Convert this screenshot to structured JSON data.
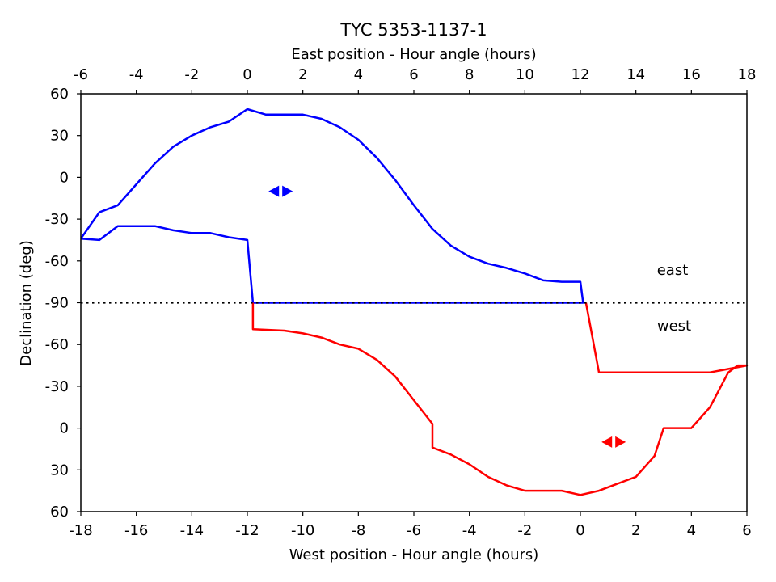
{
  "chart_data": {
    "type": "line",
    "title": "TYC 5353-1137-1",
    "top_xlabel": "East position - Hour angle (hours)",
    "bottom_xlabel": "West position - Hour angle (hours)",
    "ylabel": "Declination (deg)",
    "top_ticks": [
      "-6",
      "-4",
      "-2",
      "0",
      "2",
      "4",
      "6",
      "8",
      "10",
      "12",
      "14",
      "16",
      "18"
    ],
    "bottom_ticks": [
      "-18",
      "-16",
      "-14",
      "-12",
      "-10",
      "-8",
      "-6",
      "-4",
      "-2",
      "0",
      "2",
      "4",
      "6"
    ],
    "y_ticks": [
      "60",
      "30",
      "0",
      "-30",
      "-60",
      "-90",
      "-60",
      "-30",
      "0",
      "30",
      "60"
    ],
    "grid": false,
    "legend_position": "right, above and below the meridian line",
    "series": [
      {
        "name": "east",
        "color": "#0000ff",
        "axis": "top",
        "outline": [
          {
            "ha": -6.0,
            "dec": -44
          },
          {
            "ha": -5.33,
            "dec": -25
          },
          {
            "ha": -4.67,
            "dec": -20
          },
          {
            "ha": -4.0,
            "dec": -5
          },
          {
            "ha": -3.33,
            "dec": 10
          },
          {
            "ha": -2.67,
            "dec": 22
          },
          {
            "ha": -2.0,
            "dec": 30
          },
          {
            "ha": -1.33,
            "dec": 36
          },
          {
            "ha": -0.67,
            "dec": 40
          },
          {
            "ha": 0.0,
            "dec": 49
          },
          {
            "ha": 0.67,
            "dec": 45
          },
          {
            "ha": 2.0,
            "dec": 45
          },
          {
            "ha": 2.67,
            "dec": 42
          },
          {
            "ha": 3.33,
            "dec": 36
          },
          {
            "ha": 4.0,
            "dec": 27
          },
          {
            "ha": 4.67,
            "dec": 14
          },
          {
            "ha": 5.33,
            "dec": -2
          },
          {
            "ha": 6.0,
            "dec": -20
          },
          {
            "ha": 6.67,
            "dec": -37
          },
          {
            "ha": 7.33,
            "dec": -49
          },
          {
            "ha": 8.0,
            "dec": -57
          },
          {
            "ha": 8.67,
            "dec": -62
          },
          {
            "ha": 9.33,
            "dec": -65
          },
          {
            "ha": 10.0,
            "dec": -69
          },
          {
            "ha": 10.67,
            "dec": -74
          },
          {
            "ha": 11.33,
            "dec": -75
          },
          {
            "ha": 12.0,
            "dec": -75
          },
          {
            "ha": 12.1,
            "dec": -90
          },
          {
            "ha": 0.2,
            "dec": -90
          },
          {
            "ha": 0.0,
            "dec": -45
          },
          {
            "ha": -0.67,
            "dec": -43
          },
          {
            "ha": -1.33,
            "dec": -40
          },
          {
            "ha": -2.0,
            "dec": -40
          },
          {
            "ha": -2.67,
            "dec": -38
          },
          {
            "ha": -3.33,
            "dec": -35
          },
          {
            "ha": -4.0,
            "dec": -35
          },
          {
            "ha": -4.67,
            "dec": -35
          },
          {
            "ha": -5.33,
            "dec": -45
          },
          {
            "ha": -6.0,
            "dec": -44
          }
        ]
      },
      {
        "name": "west",
        "color": "#ff0000",
        "axis": "bottom",
        "outline": [
          {
            "ha": -11.8,
            "dec": -90
          },
          {
            "ha": -11.8,
            "dec": -71
          },
          {
            "ha": -10.67,
            "dec": -70
          },
          {
            "ha": -10.0,
            "dec": -68
          },
          {
            "ha": -9.33,
            "dec": -65
          },
          {
            "ha": -8.67,
            "dec": -60
          },
          {
            "ha": -8.0,
            "dec": -57
          },
          {
            "ha": -7.33,
            "dec": -49
          },
          {
            "ha": -6.67,
            "dec": -37
          },
          {
            "ha": -6.0,
            "dec": -20
          },
          {
            "ha": -5.33,
            "dec": -3
          },
          {
            "ha": -5.33,
            "dec": 14
          },
          {
            "ha": -4.67,
            "dec": 19
          },
          {
            "ha": -4.0,
            "dec": 26
          },
          {
            "ha": -3.33,
            "dec": 35
          },
          {
            "ha": -2.67,
            "dec": 41
          },
          {
            "ha": -2.0,
            "dec": 45
          },
          {
            "ha": -1.33,
            "dec": 45
          },
          {
            "ha": -0.67,
            "dec": 45
          },
          {
            "ha": 0.0,
            "dec": 48
          },
          {
            "ha": 0.67,
            "dec": 45
          },
          {
            "ha": 1.33,
            "dec": 40
          },
          {
            "ha": 2.0,
            "dec": 35
          },
          {
            "ha": 2.67,
            "dec": 20
          },
          {
            "ha": 3.0,
            "dec": 0
          },
          {
            "ha": 4.0,
            "dec": 0
          },
          {
            "ha": 4.67,
            "dec": -15
          },
          {
            "ha": 5.33,
            "dec": -40
          },
          {
            "ha": 5.67,
            "dec": -45
          },
          {
            "ha": 6.0,
            "dec": -45
          },
          {
            "ha": 4.67,
            "dec": -40
          },
          {
            "ha": 3.33,
            "dec": -40
          },
          {
            "ha": 2.0,
            "dec": -40
          },
          {
            "ha": 1.33,
            "dec": -40
          },
          {
            "ha": 0.67,
            "dec": -40
          },
          {
            "ha": 0.2,
            "dec": -90
          }
        ]
      }
    ],
    "markers": [
      {
        "name": "east-direction-marker",
        "color": "#0000ff",
        "axis": "top",
        "ha": 1.2,
        "dec": -10
      },
      {
        "name": "west-direction-marker",
        "color": "#ff0000",
        "axis": "bottom",
        "ha": 1.2,
        "dec": 10
      }
    ],
    "meridian_line": {
      "dec": -90,
      "style": "dotted",
      "color": "#000000"
    },
    "legend": [
      {
        "label": "east",
        "color": "#0000ff"
      },
      {
        "label": "west",
        "color": "#ff0000"
      }
    ]
  }
}
